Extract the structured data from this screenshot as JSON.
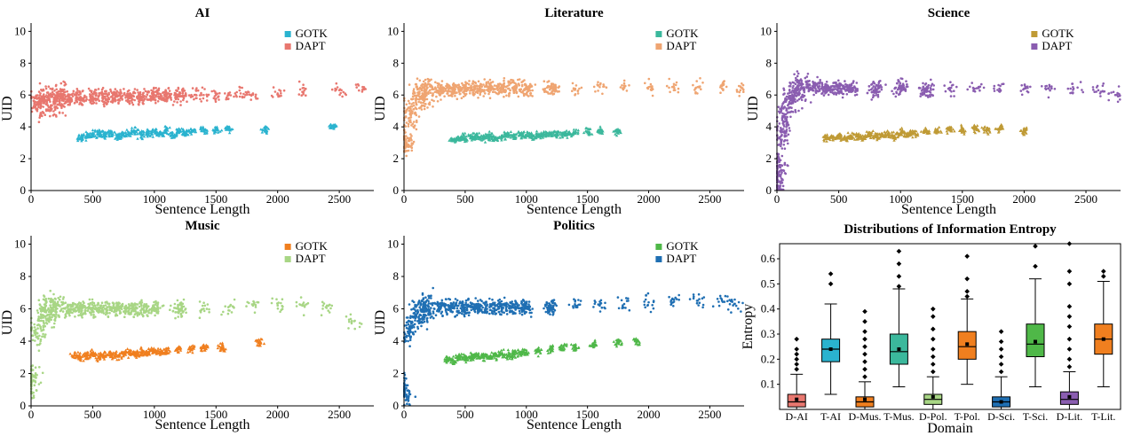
{
  "figure": {
    "colors": {
      "ai_gotk": "#2ab3cf",
      "ai_dapt": "#e8776f",
      "lit_gotk": "#3bb89c",
      "lit_dapt": "#efa572",
      "sci_gotk": "#bf9a35",
      "sci_dapt": "#8a5db0",
      "mus_gotk": "#f07f1f",
      "mus_dapt": "#a8d685",
      "pol_gotk": "#4fb848",
      "pol_dapt": "#1f6fb3"
    }
  },
  "chart_data": [
    {
      "id": "ai",
      "type": "scatter",
      "title": "AI",
      "xlabel": "Sentence Length",
      "ylabel": "UID",
      "xlim": [
        0,
        2780
      ],
      "ylim": [
        0,
        10.3
      ],
      "xticks": [
        0,
        500,
        1000,
        1500,
        2000,
        2500
      ],
      "yticks": [
        0,
        2,
        4,
        6,
        8,
        10
      ],
      "legend": {
        "position": "top-right",
        "entries": [
          "GOTK",
          "DAPT"
        ]
      },
      "series": [
        {
          "name": "GOTK",
          "marker": "triangle",
          "color_key": "ai_gotk",
          "x": [
            400,
            450,
            500,
            550,
            600,
            650,
            700,
            750,
            800,
            850,
            900,
            950,
            1000,
            1050,
            1100,
            1150,
            1200,
            1250,
            1300,
            1400,
            1500,
            1600,
            1900,
            2450
          ],
          "y": [
            3.3,
            3.4,
            3.5,
            3.6,
            3.5,
            3.6,
            3.4,
            3.5,
            3.6,
            3.7,
            3.5,
            3.6,
            3.7,
            3.6,
            3.8,
            3.5,
            3.7,
            3.6,
            3.7,
            3.8,
            3.8,
            3.9,
            3.8,
            4.0
          ]
        },
        {
          "name": "DAPT",
          "marker": "circle",
          "color_key": "ai_dapt",
          "x": [
            50,
            100,
            150,
            200,
            250,
            300,
            400,
            500,
            600,
            700,
            800,
            900,
            1000,
            1100,
            1200,
            1300,
            1400,
            1500,
            1600,
            1700,
            1800,
            2000,
            2200,
            2500,
            2700
          ],
          "y": [
            5.5,
            5.6,
            5.7,
            5.8,
            5.8,
            5.9,
            5.8,
            5.9,
            5.9,
            5.9,
            5.9,
            5.9,
            6.0,
            6.0,
            6.0,
            6.0,
            6.0,
            6.0,
            6.0,
            6.1,
            6.1,
            6.1,
            6.2,
            6.3,
            6.4
          ]
        }
      ]
    },
    {
      "id": "lit",
      "type": "scatter",
      "title": "Literature",
      "xlabel": "Sentence Length",
      "ylabel": "UID",
      "xlim": [
        0,
        2780
      ],
      "ylim": [
        0,
        10.3
      ],
      "xticks": [
        0,
        500,
        1000,
        1500,
        2000,
        2500
      ],
      "yticks": [
        0,
        2,
        4,
        6,
        8,
        10
      ],
      "legend": {
        "position": "top-right",
        "entries": [
          "GOTK",
          "DAPT"
        ]
      },
      "series": [
        {
          "name": "GOTK",
          "marker": "triangle",
          "color_key": "lit_gotk",
          "x": [
            400,
            450,
            500,
            550,
            600,
            650,
            700,
            750,
            800,
            850,
            900,
            950,
            1000,
            1050,
            1100,
            1150,
            1200,
            1250,
            1300,
            1350,
            1400,
            1500,
            1600,
            1750
          ],
          "y": [
            3.1,
            3.2,
            3.3,
            3.3,
            3.4,
            3.3,
            3.4,
            3.3,
            3.4,
            3.5,
            3.4,
            3.5,
            3.5,
            3.4,
            3.5,
            3.5,
            3.6,
            3.5,
            3.5,
            3.6,
            3.6,
            3.7,
            3.7,
            3.7
          ]
        },
        {
          "name": "DAPT",
          "marker": "circle",
          "color_key": "lit_dapt",
          "x": [
            20,
            50,
            100,
            150,
            200,
            300,
            400,
            500,
            600,
            700,
            800,
            900,
            1000,
            1200,
            1400,
            1600,
            1800,
            2000,
            2200,
            2400,
            2600,
            2750
          ],
          "y": [
            3.0,
            4.8,
            5.8,
            6.1,
            6.2,
            6.3,
            6.4,
            6.4,
            6.4,
            6.4,
            6.4,
            6.4,
            6.4,
            6.4,
            6.4,
            6.5,
            6.5,
            6.5,
            6.5,
            6.5,
            6.4,
            6.3
          ]
        }
      ]
    },
    {
      "id": "sci",
      "type": "scatter",
      "title": "Science",
      "xlabel": "Sentence Length",
      "ylabel": "UID",
      "xlim": [
        0,
        2780
      ],
      "ylim": [
        0,
        10.3
      ],
      "xticks": [
        0,
        500,
        1000,
        1500,
        2000,
        2500
      ],
      "yticks": [
        0,
        2,
        4,
        6,
        8,
        10
      ],
      "legend": {
        "position": "top-right",
        "entries": [
          "GOTK",
          "DAPT"
        ]
      },
      "series": [
        {
          "name": "GOTK",
          "marker": "triangle",
          "color_key": "sci_gotk",
          "x": [
            400,
            450,
            500,
            550,
            600,
            650,
            700,
            750,
            800,
            850,
            900,
            950,
            1000,
            1050,
            1100,
            1200,
            1300,
            1400,
            1500,
            1600,
            1700,
            1800,
            2000
          ],
          "y": [
            3.3,
            3.3,
            3.4,
            3.3,
            3.4,
            3.4,
            3.3,
            3.5,
            3.4,
            3.5,
            3.5,
            3.4,
            3.6,
            3.5,
            3.6,
            3.7,
            3.7,
            3.8,
            3.8,
            3.9,
            3.8,
            3.9,
            3.7
          ]
        },
        {
          "name": "DAPT",
          "marker": "circle",
          "color_key": "sci_dapt",
          "x": [
            5,
            20,
            40,
            60,
            100,
            150,
            200,
            300,
            400,
            500,
            600,
            800,
            1000,
            1200,
            1400,
            1600,
            1800,
            2000,
            2200,
            2400,
            2600,
            2750
          ],
          "y": [
            0.3,
            1.5,
            3.5,
            4.8,
            5.8,
            6.3,
            6.5,
            6.5,
            6.4,
            6.4,
            6.4,
            6.4,
            6.4,
            6.3,
            6.3,
            6.4,
            6.4,
            6.4,
            6.4,
            6.4,
            6.3,
            6.0
          ]
        }
      ]
    },
    {
      "id": "mus",
      "type": "scatter",
      "title": "Music",
      "xlabel": "Sentence Length",
      "ylabel": "UID",
      "xlim": [
        0,
        2780
      ],
      "ylim": [
        0,
        10.3
      ],
      "xticks": [
        0,
        500,
        1000,
        1500,
        2000,
        2500
      ],
      "yticks": [
        0,
        2,
        4,
        6,
        8,
        10
      ],
      "legend": {
        "position": "top-right",
        "entries": [
          "GOTK",
          "DAPT"
        ]
      },
      "series": [
        {
          "name": "GOTK",
          "marker": "triangle",
          "color_key": "mus_gotk",
          "x": [
            350,
            400,
            450,
            500,
            550,
            600,
            650,
            700,
            750,
            800,
            850,
            900,
            950,
            1000,
            1050,
            1100,
            1200,
            1300,
            1400,
            1550,
            1850
          ],
          "y": [
            3.1,
            3.0,
            3.1,
            3.2,
            3.0,
            3.1,
            3.2,
            3.1,
            3.2,
            3.3,
            3.2,
            3.3,
            3.3,
            3.4,
            3.3,
            3.4,
            3.5,
            3.5,
            3.6,
            3.6,
            3.9
          ]
        },
        {
          "name": "DAPT",
          "marker": "circle",
          "color_key": "mus_dapt",
          "x": [
            10,
            50,
            100,
            150,
            200,
            300,
            400,
            500,
            600,
            700,
            800,
            900,
            1000,
            1200,
            1400,
            1600,
            1800,
            2000,
            2200,
            2400,
            2600
          ],
          "y": [
            1.5,
            4.5,
            5.6,
            5.9,
            6.0,
            6.0,
            6.0,
            6.0,
            6.0,
            6.0,
            6.0,
            6.0,
            6.0,
            6.0,
            6.0,
            6.1,
            6.2,
            6.2,
            6.2,
            6.2,
            5.1
          ]
        }
      ]
    },
    {
      "id": "pol",
      "type": "scatter",
      "title": "Politics",
      "xlabel": "Sentence Length",
      "ylabel": "UID",
      "xlim": [
        0,
        2780
      ],
      "ylim": [
        0,
        10.3
      ],
      "xticks": [
        0,
        500,
        1000,
        1500,
        2000,
        2500
      ],
      "yticks": [
        0,
        2,
        4,
        6,
        8,
        10
      ],
      "legend": {
        "position": "top-right",
        "entries": [
          "GOTK",
          "DAPT"
        ]
      },
      "series": [
        {
          "name": "GOTK",
          "marker": "triangle",
          "color_key": "pol_gotk",
          "x": [
            350,
            400,
            450,
            500,
            550,
            600,
            650,
            700,
            750,
            800,
            850,
            900,
            950,
            1000,
            1100,
            1200,
            1300,
            1400,
            1550,
            1750,
            1900
          ],
          "y": [
            2.9,
            2.8,
            3.0,
            2.9,
            3.0,
            3.1,
            3.0,
            3.0,
            3.1,
            3.2,
            3.1,
            3.2,
            3.3,
            3.3,
            3.4,
            3.5,
            3.6,
            3.6,
            3.8,
            3.9,
            4.0
          ]
        },
        {
          "name": "DAPT",
          "marker": "circle",
          "color_key": "pol_dapt",
          "x": [
            10,
            50,
            100,
            150,
            200,
            300,
            400,
            500,
            600,
            700,
            800,
            900,
            1000,
            1200,
            1400,
            1600,
            1800,
            2000,
            2200,
            2400,
            2600,
            2700
          ],
          "y": [
            1.0,
            4.6,
            5.6,
            5.9,
            6.0,
            6.1,
            6.1,
            6.1,
            6.1,
            6.1,
            6.1,
            6.1,
            6.1,
            6.1,
            6.2,
            6.2,
            6.3,
            6.4,
            6.4,
            6.5,
            6.5,
            6.3
          ]
        }
      ]
    },
    {
      "id": "ent",
      "type": "box",
      "title": "Distributions of Information Entropy",
      "xlabel": "Domain",
      "ylabel": "Entropy",
      "ylim": [
        0,
        0.66
      ],
      "yticks": [
        0.1,
        0.2,
        0.3,
        0.4,
        0.5,
        0.6
      ],
      "categories": [
        "D-AI",
        "T-AI",
        "D-Mus.",
        "T-Mus.",
        "D-Pol.",
        "T-Pol.",
        "D-Sci.",
        "T-Sci.",
        "D-Lit.",
        "T-Lit."
      ],
      "color_keys": [
        "ai_dapt",
        "ai_gotk",
        "mus_gotk",
        "lit_gotk",
        "mus_dapt",
        "mus_gotk",
        "pol_dapt",
        "pol_gotk",
        "sci_dapt",
        "mus_gotk"
      ],
      "boxes": [
        {
          "whisker_low": 0.0,
          "q1": 0.01,
          "median": 0.03,
          "q3": 0.06,
          "whisker_high": 0.14,
          "mean": 0.04,
          "outliers": [
            0.16,
            0.18,
            0.2,
            0.22,
            0.24,
            0.28
          ]
        },
        {
          "whisker_low": 0.06,
          "q1": 0.19,
          "median": 0.24,
          "q3": 0.28,
          "whisker_high": 0.42,
          "mean": 0.24,
          "outliers": [
            0.5,
            0.54
          ]
        },
        {
          "whisker_low": 0.0,
          "q1": 0.01,
          "median": 0.03,
          "q3": 0.05,
          "whisker_high": 0.11,
          "mean": 0.04,
          "outliers": [
            0.13,
            0.16,
            0.19,
            0.22,
            0.25,
            0.28,
            0.31,
            0.35,
            0.39
          ]
        },
        {
          "whisker_low": 0.09,
          "q1": 0.18,
          "median": 0.23,
          "q3": 0.3,
          "whisker_high": 0.48,
          "mean": 0.24,
          "outliers": [
            0.49,
            0.53,
            0.58,
            0.63
          ]
        },
        {
          "whisker_low": 0.0,
          "q1": 0.02,
          "median": 0.04,
          "q3": 0.06,
          "whisker_high": 0.13,
          "mean": 0.05,
          "outliers": [
            0.15,
            0.18,
            0.21,
            0.24,
            0.28,
            0.32,
            0.37,
            0.4
          ]
        },
        {
          "whisker_low": 0.1,
          "q1": 0.2,
          "median": 0.25,
          "q3": 0.31,
          "whisker_high": 0.44,
          "mean": 0.26,
          "outliers": [
            0.45,
            0.47,
            0.52,
            0.61
          ]
        },
        {
          "whisker_low": 0.0,
          "q1": 0.01,
          "median": 0.03,
          "q3": 0.05,
          "whisker_high": 0.13,
          "mean": 0.03,
          "outliers": [
            0.15,
            0.18,
            0.21,
            0.24,
            0.27,
            0.31
          ]
        },
        {
          "whisker_low": 0.09,
          "q1": 0.21,
          "median": 0.26,
          "q3": 0.34,
          "whisker_high": 0.52,
          "mean": 0.27,
          "outliers": [
            0.57,
            0.65
          ]
        },
        {
          "whisker_low": 0.0,
          "q1": 0.02,
          "median": 0.04,
          "q3": 0.07,
          "whisker_high": 0.15,
          "mean": 0.05,
          "outliers": [
            0.17,
            0.2,
            0.24,
            0.28,
            0.33,
            0.37,
            0.41,
            0.5,
            0.55,
            0.66
          ]
        },
        {
          "whisker_low": 0.09,
          "q1": 0.22,
          "median": 0.28,
          "q3": 0.34,
          "whisker_high": 0.51,
          "mean": 0.28,
          "outliers": [
            0.53,
            0.55
          ]
        }
      ]
    }
  ]
}
